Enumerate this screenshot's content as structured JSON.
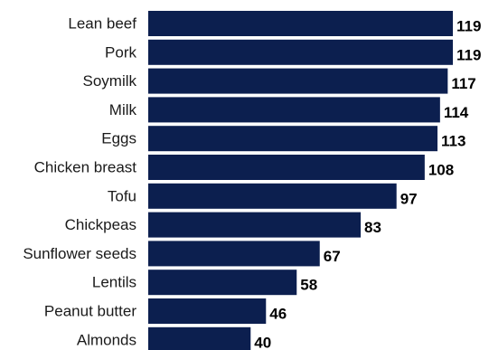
{
  "chart_data": {
    "type": "bar",
    "orientation": "horizontal",
    "categories": [
      "Lean beef",
      "Pork",
      "Soymilk",
      "Milk",
      "Eggs",
      "Chicken breast",
      "Tofu",
      "Chickpeas",
      "Sunflower seeds",
      "Lentils",
      "Peanut butter",
      "Almonds"
    ],
    "values": [
      119,
      119,
      117,
      114,
      113,
      108,
      97,
      83,
      67,
      58,
      46,
      40
    ],
    "value_labels": [
      "119",
      "119",
      "117",
      "114",
      "113",
      "108",
      "97",
      "83",
      "67",
      "58",
      "46",
      "40"
    ],
    "title": "",
    "xlabel": "",
    "ylabel": "",
    "xlim": [
      0,
      119
    ],
    "grid": false,
    "legend": "none",
    "colors": {
      "bar": "#0c1f4f"
    }
  }
}
